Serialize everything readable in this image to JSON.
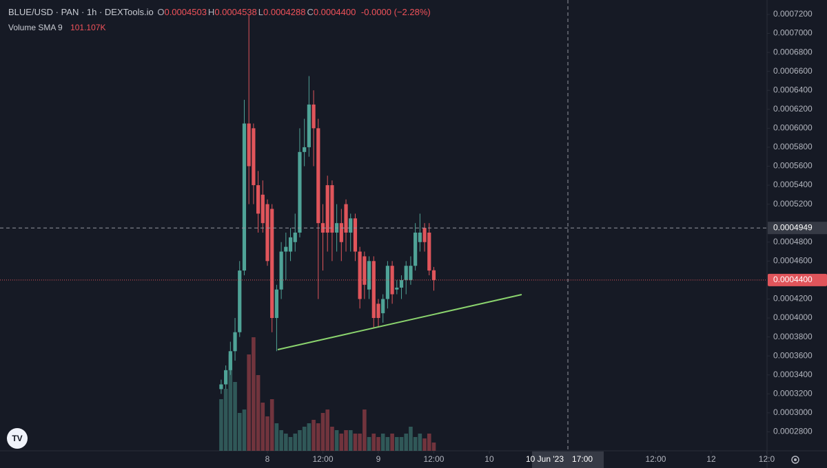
{
  "chart_data": {
    "type": "candlestick",
    "title": "BLUE/USD · PAN · 1h · DEXTools.io",
    "ohlc_legend": [
      {
        "key": "O",
        "label": "0.0004503"
      },
      {
        "key": "H",
        "label": "0.0004538"
      },
      {
        "key": "L",
        "label": "0.0004288"
      },
      {
        "key": "C",
        "label": "0.0004400"
      }
    ],
    "change_label": "-0.0000 (−2.28%)",
    "volume_indicator": {
      "name": "Volume SMA 9",
      "label": "101.107K"
    },
    "x": [
      14,
      15,
      16,
      17,
      18,
      19,
      20,
      21,
      22,
      23,
      24,
      25,
      26,
      27,
      28,
      29,
      30,
      31,
      32,
      33,
      34,
      35,
      36,
      37,
      38,
      39,
      40,
      41,
      42,
      43,
      44,
      45,
      46,
      47,
      48,
      49,
      50,
      51,
      52,
      53,
      54,
      55,
      56,
      57,
      58,
      59,
      60
    ],
    "open": [
      0.000325,
      0.00033,
      0.000345,
      0.000365,
      0.000385,
      0.00045,
      0.000605,
      0.0006,
      0.00054,
      0.00053,
      0.00052,
      0.000515,
      0.0004,
      0.00043,
      0.00047,
      0.00047,
      0.00048,
      0.00049,
      0.000575,
      0.00058,
      0.000625,
      0.0006,
      0.0005,
      0.00054,
      0.00054,
      0.00049,
      0.0005,
      0.00052,
      0.00049,
      0.000505,
      0.00047,
      0.000465,
      0.00043,
      0.00046,
      0.000415,
      0.000405,
      0.00042,
      0.000455,
      0.00043,
      0.000432,
      0.00044,
      0.00044,
      0.000455,
      0.00048,
      0.000495,
      0.00049,
      0.0004503
    ],
    "high": [
      0.000335,
      0.00035,
      0.000375,
      0.0004,
      0.00046,
      0.00063,
      0.00072,
      0.000605,
      0.000555,
      0.000545,
      0.000525,
      0.00052,
      0.000435,
      0.00048,
      0.00049,
      0.000495,
      0.00051,
      0.0006,
      0.00061,
      0.000655,
      0.00064,
      0.00061,
      0.00052,
      0.00055,
      0.000545,
      0.00052,
      0.000515,
      0.000525,
      0.00051,
      0.00051,
      0.000475,
      0.00047,
      0.000465,
      0.000465,
      0.00042,
      0.000425,
      0.00046,
      0.00046,
      0.00044,
      0.000445,
      0.00046,
      0.000465,
      0.0005,
      0.00051,
      0.0005,
      0.0005,
      0.0004538
    ],
    "low": [
      0.00032,
      0.000325,
      0.00034,
      0.000355,
      0.00038,
      0.000445,
      0.00052,
      0.00052,
      0.00049,
      0.00049,
      0.000455,
      0.000385,
      0.000365,
      0.00042,
      0.00044,
      0.00046,
      0.00047,
      0.000485,
      0.00056,
      0.00057,
      0.00056,
      0.00042,
      0.00045,
      0.00047,
      0.00046,
      0.00047,
      0.00046,
      0.00047,
      0.00047,
      0.00046,
      0.00041,
      0.00042,
      0.00042,
      0.00039,
      0.00039,
      0.000395,
      0.00041,
      0.000415,
      0.000425,
      0.00042,
      0.000425,
      0.000435,
      0.00045,
      0.00047,
      0.00047,
      0.000445,
      0.0004288
    ],
    "close": [
      0.00033,
      0.000345,
      0.000365,
      0.000385,
      0.00045,
      0.000605,
      0.00056,
      0.00054,
      0.00051,
      0.0005,
      0.00046,
      0.0004,
      0.00043,
      0.00047,
      0.000475,
      0.000485,
      0.00049,
      0.000575,
      0.00058,
      0.000625,
      0.0006,
      0.0005,
      0.00049,
      0.00049,
      0.00049,
      0.0005,
      0.00048,
      0.00049,
      0.000505,
      0.00047,
      0.00042,
      0.000435,
      0.00046,
      0.0004,
      0.0004,
      0.00042,
      0.000455,
      0.000425,
      0.000432,
      0.00044,
      0.000455,
      0.000455,
      0.00049,
      0.00049,
      0.00048,
      0.00045,
      0.00044
    ],
    "volume": [
      75,
      90,
      140,
      100,
      55,
      60,
      140,
      165,
      110,
      70,
      50,
      75,
      40,
      30,
      25,
      20,
      25,
      30,
      35,
      40,
      45,
      40,
      55,
      60,
      35,
      30,
      25,
      30,
      30,
      25,
      25,
      60,
      20,
      25,
      20,
      25,
      20,
      25,
      20,
      20,
      25,
      35,
      20,
      25,
      18,
      25,
      12
    ],
    "up_color": "#4fa397",
    "down_color": "#e0555b",
    "ylim": [
      0.00026,
      0.0007352
    ],
    "yticks": [
      {
        "value": 0.00028,
        "label": "0.0002800"
      },
      {
        "value": 0.0003,
        "label": "0.0003000"
      },
      {
        "value": 0.00032,
        "label": "0.0003200"
      },
      {
        "value": 0.00034,
        "label": "0.0003400"
      },
      {
        "value": 0.00036,
        "label": "0.0003600"
      },
      {
        "value": 0.00038,
        "label": "0.0003800"
      },
      {
        "value": 0.0004,
        "label": "0.0004000"
      },
      {
        "value": 0.00042,
        "label": "0.0004200"
      },
      {
        "value": 0.00046,
        "label": "0.0004600"
      },
      {
        "value": 0.00048,
        "label": "0.0004800"
      },
      {
        "value": 0.00052,
        "label": "0.0005200"
      },
      {
        "value": 0.00054,
        "label": "0.0005400"
      },
      {
        "value": 0.00056,
        "label": "0.0005600"
      },
      {
        "value": 0.00058,
        "label": "0.0005800"
      },
      {
        "value": 0.0006,
        "label": "0.0006000"
      },
      {
        "value": 0.00062,
        "label": "0.0006200"
      },
      {
        "value": 0.00064,
        "label": "0.0006400"
      },
      {
        "value": 0.00066,
        "label": "0.0006600"
      },
      {
        "value": 0.00068,
        "label": "0.0006800"
      },
      {
        "value": 0.0007,
        "label": "0.0007000"
      },
      {
        "value": 0.00072,
        "label": "0.0007200"
      }
    ],
    "xlim": [
      -33.84,
      132.08
    ],
    "xticks": [
      {
        "value": 24,
        "label": "8"
      },
      {
        "value": 36,
        "label": "12:00"
      },
      {
        "value": 48,
        "label": "9"
      },
      {
        "value": 60,
        "label": "12:00"
      },
      {
        "value": 72,
        "label": "10"
      },
      {
        "value": 108,
        "label": "12:00"
      },
      {
        "value": 120,
        "label": "12"
      },
      {
        "value": 132,
        "label": "12:0"
      }
    ],
    "crosshair": {
      "price": {
        "value": 0.0004949,
        "label": "0.0004949"
      },
      "time": {
        "value": 89,
        "label": [
          "10 Jun '23",
          "17:00"
        ]
      }
    },
    "last_price_label": "0.0004400"
  }
}
